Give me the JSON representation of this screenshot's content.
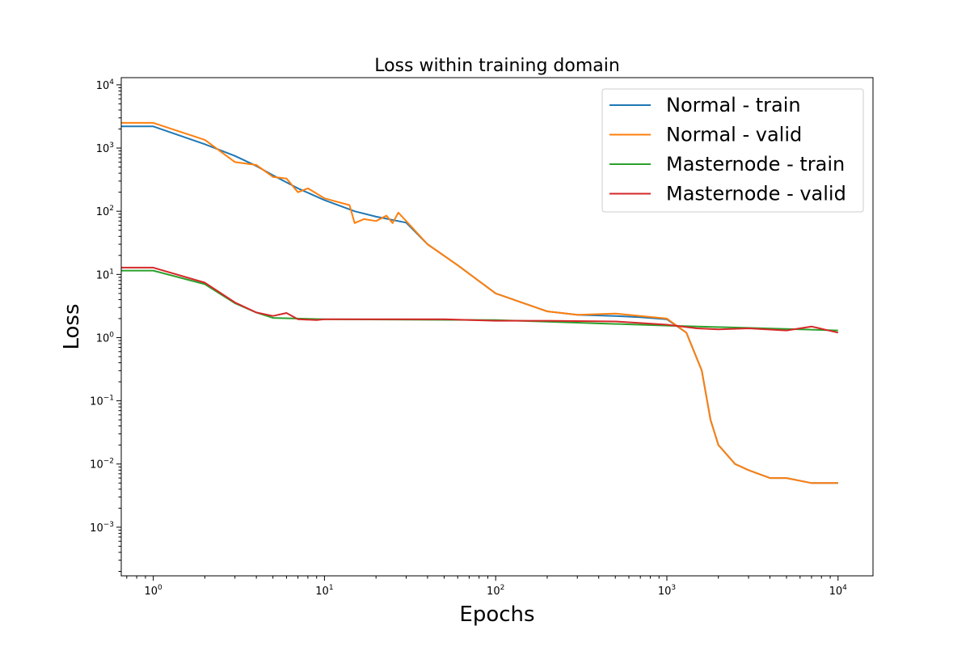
{
  "chart_data": {
    "type": "line",
    "title": "Loss within training domain",
    "xlabel": "Epochs",
    "ylabel": "Loss",
    "xscale": "log",
    "yscale": "log",
    "xlim": [
      0.65,
      16000
    ],
    "ylim": [
      0.00017,
      13000
    ],
    "grid": false,
    "legend_position": "top-right",
    "x_ticks": [
      {
        "value": 1,
        "base": "10",
        "exp": "0"
      },
      {
        "value": 10,
        "base": "10",
        "exp": "1"
      },
      {
        "value": 100,
        "base": "10",
        "exp": "2"
      },
      {
        "value": 1000,
        "base": "10",
        "exp": "3"
      },
      {
        "value": 10000,
        "base": "10",
        "exp": "4"
      }
    ],
    "y_ticks": [
      {
        "value": 0.001,
        "base": "10",
        "exp": "−3"
      },
      {
        "value": 0.01,
        "base": "10",
        "exp": "−2"
      },
      {
        "value": 0.1,
        "base": "10",
        "exp": "−1"
      },
      {
        "value": 1,
        "base": "10",
        "exp": "0"
      },
      {
        "value": 10,
        "base": "10",
        "exp": "1"
      },
      {
        "value": 100,
        "base": "10",
        "exp": "2"
      },
      {
        "value": 1000,
        "base": "10",
        "exp": "3"
      },
      {
        "value": 10000,
        "base": "10",
        "exp": "4"
      }
    ],
    "series": [
      {
        "name": "Normal - train",
        "color": "#1f77b4",
        "x": [
          0.65,
          1,
          2,
          3,
          4,
          5,
          7,
          10,
          15,
          20,
          30,
          40,
          60,
          100,
          200,
          300,
          500,
          700,
          1000,
          1300,
          1600,
          1800,
          2000,
          2500,
          3000,
          4000,
          5000,
          7000,
          10000
        ],
        "y": [
          2200,
          2200,
          1150,
          750,
          520,
          370,
          230,
          150,
          100,
          82,
          66,
          30,
          14,
          5,
          2.6,
          2.3,
          2.2,
          2.1,
          1.95,
          1.2,
          0.3,
          0.05,
          0.02,
          0.01,
          0.008,
          0.006,
          0.006,
          0.005,
          0.005
        ]
      },
      {
        "name": "Normal - valid",
        "color": "#ff7f0e",
        "x": [
          0.65,
          1,
          2,
          3,
          4,
          5,
          6,
          7,
          8,
          10,
          12,
          14,
          15,
          17,
          20,
          23,
          25,
          27,
          30,
          40,
          60,
          100,
          200,
          300,
          500,
          700,
          1000,
          1300,
          1600,
          1800,
          2000,
          2500,
          3000,
          4000,
          5000,
          7000,
          10000
        ],
        "y": [
          2500,
          2500,
          1350,
          600,
          540,
          350,
          330,
          200,
          230,
          160,
          140,
          125,
          65,
          75,
          70,
          85,
          65,
          95,
          70,
          30,
          14,
          5,
          2.6,
          2.3,
          2.4,
          2.2,
          2.0,
          1.2,
          0.3,
          0.05,
          0.02,
          0.01,
          0.008,
          0.006,
          0.006,
          0.005,
          0.005
        ]
      },
      {
        "name": "Masternode - train",
        "color": "#2ca02c",
        "x": [
          0.65,
          1,
          2,
          3,
          4,
          5,
          10,
          100,
          1000,
          10000
        ],
        "y": [
          11.5,
          11.5,
          7,
          3.5,
          2.5,
          2.05,
          1.95,
          1.9,
          1.55,
          1.3
        ]
      },
      {
        "name": "Masternode - valid",
        "color": "#d62728",
        "x": [
          0.65,
          1,
          2,
          3,
          4,
          5,
          6,
          7,
          9,
          10,
          20,
          50,
          100,
          200,
          500,
          1000,
          1500,
          2000,
          3000,
          5000,
          7000,
          10000
        ],
        "y": [
          12.8,
          12.8,
          7.4,
          3.6,
          2.5,
          2.2,
          2.45,
          1.95,
          1.9,
          1.95,
          1.95,
          1.95,
          1.85,
          1.85,
          1.8,
          1.6,
          1.4,
          1.35,
          1.4,
          1.3,
          1.5,
          1.2
        ]
      }
    ]
  }
}
